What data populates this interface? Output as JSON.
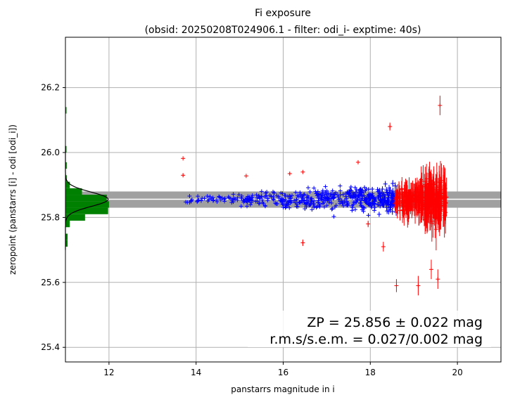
{
  "chart_data": {
    "type": "scatter",
    "title": "Fi exposure",
    "subtitle": "(obsid: 20250208T024906.1 - filter: odi_i- exptime: 40s)",
    "xlabel": "panstarrs magnitude in i",
    "ylabel": "zeropoint (panstarrs [i] - odi [odi_i])",
    "xlim": [
      11.0,
      21.0
    ],
    "ylim": [
      25.355,
      26.355
    ],
    "xticks": [
      "12",
      "14",
      "16",
      "18",
      "20"
    ],
    "yticks": [
      "25.4",
      "25.6",
      "25.8",
      "26.0",
      "26.2"
    ],
    "grid": true,
    "zp": 25.856,
    "zp_band": [
      25.83,
      25.88
    ],
    "annotation": {
      "line1": "ZP = 25.856 ± 0.022 mag",
      "line2": "r.m.s/s.e.m. = 0.027/0.002 mag"
    },
    "histogram": {
      "orientation": "horizontal",
      "bins": [
        {
          "y0": 25.71,
          "y1": 25.73,
          "count": 0.05
        },
        {
          "y0": 25.73,
          "y1": 25.75,
          "count": 0.05
        },
        {
          "y0": 25.77,
          "y1": 25.79,
          "count": 0.1
        },
        {
          "y0": 25.79,
          "y1": 25.81,
          "count": 0.45
        },
        {
          "y0": 25.81,
          "y1": 25.83,
          "count": 0.98
        },
        {
          "y0": 25.83,
          "y1": 25.85,
          "count": 1.0
        },
        {
          "y0": 25.85,
          "y1": 25.87,
          "count": 0.95
        },
        {
          "y0": 25.87,
          "y1": 25.89,
          "count": 0.38
        },
        {
          "y0": 25.89,
          "y1": 25.91,
          "count": 0.1
        },
        {
          "y0": 25.91,
          "y1": 25.93,
          "count": 0.03
        },
        {
          "y0": 25.95,
          "y1": 25.97,
          "count": 0.03
        },
        {
          "y0": 26.0,
          "y1": 26.02,
          "count": 0.02
        },
        {
          "y0": 26.12,
          "y1": 26.14,
          "count": 0.02
        }
      ]
    },
    "series": [
      {
        "kind": "used",
        "color": "#0000ff"
      },
      {
        "kind": "rejected",
        "color": "#ff0000"
      }
    ],
    "colors": {
      "hist": "#008000",
      "band": "#a0a0a0",
      "zp_line": "#ffffff",
      "grid": "#b0b0b0"
    }
  }
}
